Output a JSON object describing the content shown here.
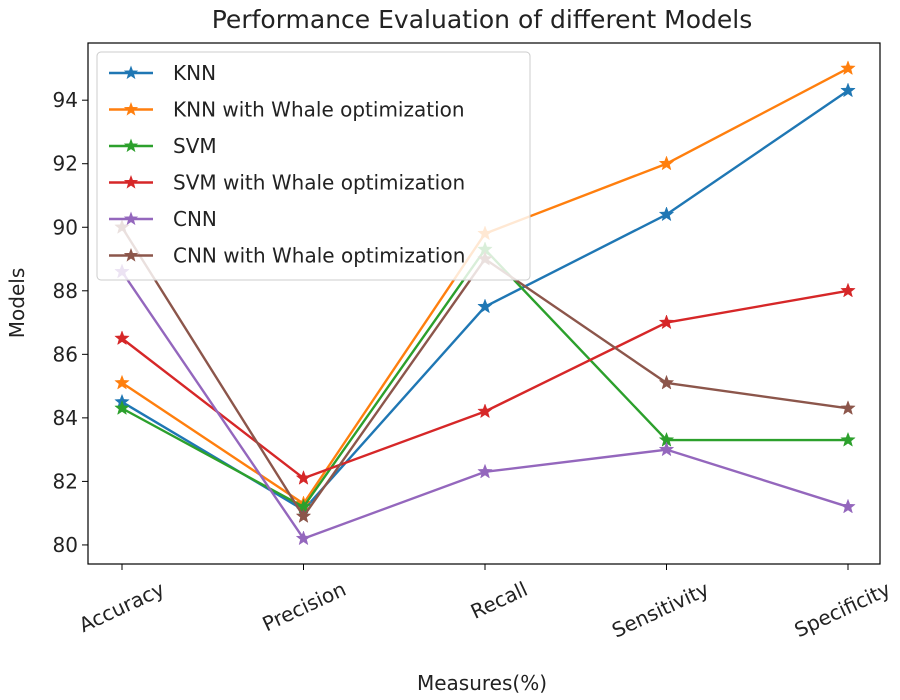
{
  "chart_data": {
    "type": "line",
    "title": "Performance Evaluation of different Models",
    "xlabel": "Measures(%)",
    "ylabel": "Models",
    "categories": [
      "Accuracy",
      "Precision",
      "Recall",
      "Sensitivity",
      "Specificity"
    ],
    "ylim": [
      79.4,
      95.8
    ],
    "yticks": [
      80,
      82,
      84,
      86,
      88,
      90,
      92,
      94
    ],
    "legend_position": "top-left",
    "grid": false,
    "series": [
      {
        "name": "KNN",
        "color": "#1f77b4",
        "values": [
          84.5,
          81.1,
          87.5,
          90.4,
          94.3
        ]
      },
      {
        "name": "KNN with Whale optimization",
        "color": "#ff7f0e",
        "values": [
          85.1,
          81.3,
          89.8,
          92.0,
          95.0
        ]
      },
      {
        "name": "SVM",
        "color": "#2ca02c",
        "values": [
          84.3,
          81.2,
          89.3,
          83.3,
          83.3
        ]
      },
      {
        "name": "SVM with Whale optimization",
        "color": "#d62728",
        "values": [
          86.5,
          82.1,
          84.2,
          87.0,
          88.0
        ]
      },
      {
        "name": "CNN",
        "color": "#9467bd",
        "values": [
          88.6,
          80.2,
          82.3,
          83.0,
          81.2
        ]
      },
      {
        "name": "CNN with Whale optimization",
        "color": "#8c564b",
        "values": [
          90.0,
          80.9,
          89.0,
          85.1,
          84.3
        ]
      }
    ]
  }
}
